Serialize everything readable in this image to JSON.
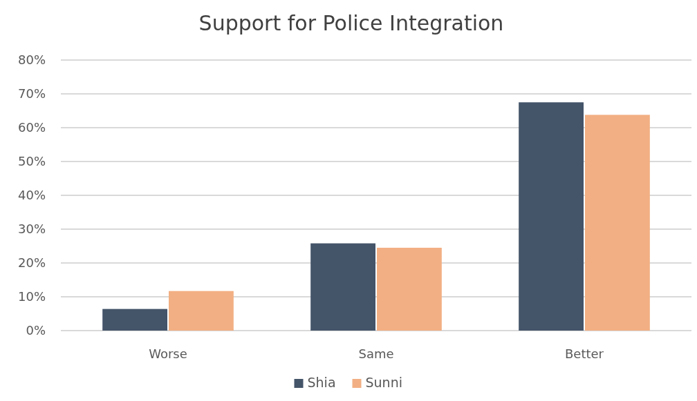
{
  "chart_data": {
    "type": "bar",
    "title": "Support for Police Integration",
    "categories": [
      "Worse",
      "Same",
      "Better"
    ],
    "series": [
      {
        "name": "Shia",
        "color": "#445469",
        "values": [
          6.4,
          25.8,
          67.5
        ]
      },
      {
        "name": "Sunni",
        "color": "#f2af83",
        "values": [
          11.7,
          24.5,
          63.8
        ]
      }
    ],
    "ylim": [
      0,
      80
    ],
    "yticks": [
      {
        "value": 0,
        "label": "0%"
      },
      {
        "value": 10,
        "label": "10%"
      },
      {
        "value": 20,
        "label": "20%"
      },
      {
        "value": 30,
        "label": "30%"
      },
      {
        "value": 40,
        "label": "40%"
      },
      {
        "value": 50,
        "label": "50%"
      },
      {
        "value": 60,
        "label": "60%"
      },
      {
        "value": 70,
        "label": "70%"
      },
      {
        "value": 80,
        "label": "80%"
      }
    ],
    "grid": "y",
    "legend": "bottom"
  }
}
